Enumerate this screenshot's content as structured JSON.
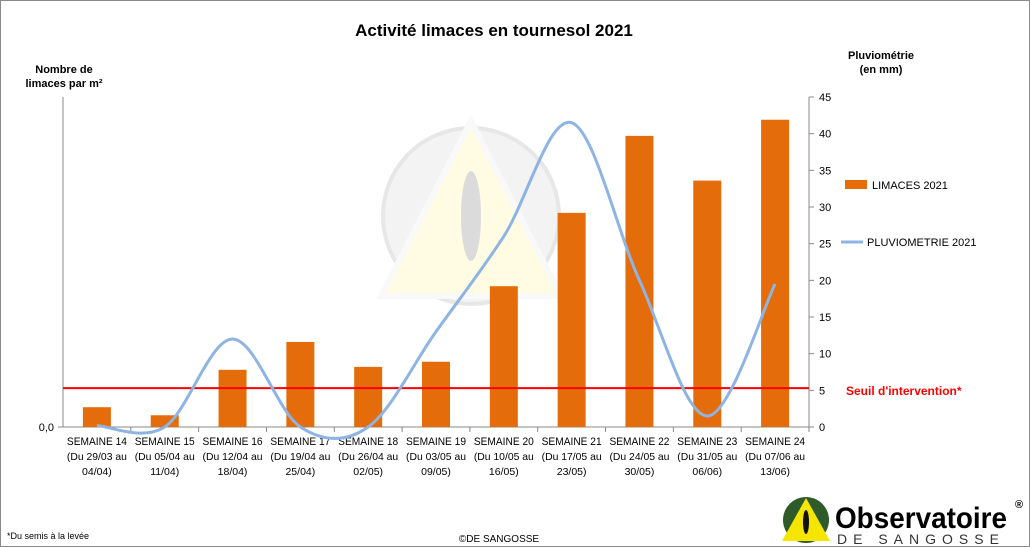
{
  "chart_data": {
    "type": "bar+line",
    "title": "Activité limaces en tournesol 2021",
    "ylabel_left": "Nombre de limaces par m²",
    "ylabel_right": "Pluviométrie (en mm)",
    "left_tick_labels": [
      "0,0"
    ],
    "right_ylim": [
      0,
      45
    ],
    "right_ticks": [
      "0",
      "5",
      "10",
      "15",
      "20",
      "25",
      "30",
      "35",
      "40",
      "45"
    ],
    "categories": [
      {
        "week": "SEMAINE 14",
        "l1": "(Du 29/03 au",
        "l2": "04/04)"
      },
      {
        "week": "SEMAINE 15",
        "l1": "(Du 05/04 au",
        "l2": "11/04)"
      },
      {
        "week": "SEMAINE 16",
        "l1": "(Du 12/04 au",
        "l2": "18/04)"
      },
      {
        "week": "SEMAINE 17",
        "l1": "(Du 19/04 au",
        "l2": "25/04)"
      },
      {
        "week": "SEMAINE 18",
        "l1": "(Du 26/04 au",
        "l2": "02/05)"
      },
      {
        "week": "SEMAINE 19",
        "l1": "(Du 03/05 au",
        "l2": "09/05)"
      },
      {
        "week": "SEMAINE 20",
        "l1": "(Du 10/05 au",
        "l2": "16/05)"
      },
      {
        "week": "SEMAINE 21",
        "l1": "(Du 17/05 au",
        "l2": "23/05)"
      },
      {
        "week": "SEMAINE 22",
        "l1": "(Du 24/05 au",
        "l2": "30/05)"
      },
      {
        "week": "SEMAINE 23",
        "l1": "(Du 31/05 au",
        "l2": "06/06)"
      },
      {
        "week": "SEMAINE 24",
        "l1": "(Du 07/06 au",
        "l2": "13/06)"
      }
    ],
    "series": [
      {
        "name": "LIMACES 2021",
        "type": "bar",
        "axis": "left",
        "note": "relative values, left axis unscaled",
        "values": [
          2.7,
          1.6,
          7.8,
          11.6,
          8.2,
          8.9,
          19.2,
          29.2,
          39.7,
          33.6,
          41.9
        ],
        "color": "#E46C0A"
      },
      {
        "name": "PLUVIOMETRIE 2021",
        "type": "line",
        "axis": "right",
        "values": [
          0.2,
          0,
          12,
          0,
          0,
          13,
          26,
          41.5,
          20,
          1.5,
          19.5
        ],
        "color": "#8EB4E3"
      }
    ],
    "threshold": {
      "label": "Seuil d'intervention*",
      "value": 5.3,
      "color": "#FF0000"
    },
    "legend_position": "right"
  },
  "footnote": "*Du semis à la levée",
  "copyright": "©DE SANGOSSE",
  "logo": {
    "name": "Observatoire",
    "sub": "DE SANGOSSE",
    "reg": "®"
  }
}
